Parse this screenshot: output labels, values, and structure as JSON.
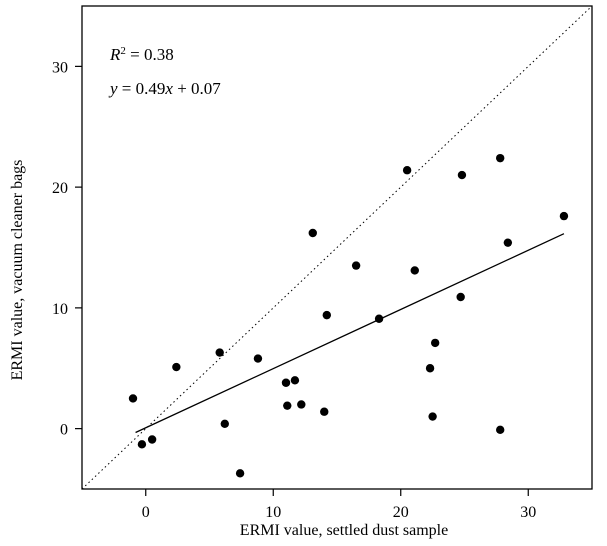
{
  "chart_data": {
    "type": "scatter",
    "xlabel": "ERMI value, settled dust sample",
    "ylabel": "ERMI value, vacuum cleaner bags",
    "xlim": [
      -5,
      35
    ],
    "ylim": [
      -5,
      35
    ],
    "xticks": [
      0,
      10,
      20,
      30
    ],
    "yticks": [
      0,
      10,
      20,
      30
    ],
    "grid": false,
    "annotations": {
      "r2_symbol": "R",
      "r2_exponent": "2",
      "r2_value": " = 0.38",
      "equation_y": "y",
      "equation_mid": " = 0.49",
      "equation_x": "x",
      "equation_tail": " + 0.07"
    },
    "points": [
      {
        "x": -1.0,
        "y": 2.5
      },
      {
        "x": -0.3,
        "y": -1.3
      },
      {
        "x": 0.5,
        "y": -0.9
      },
      {
        "x": 2.4,
        "y": 5.1
      },
      {
        "x": 5.8,
        "y": 6.3
      },
      {
        "x": 6.2,
        "y": 0.4
      },
      {
        "x": 7.4,
        "y": -3.7
      },
      {
        "x": 8.8,
        "y": 5.8
      },
      {
        "x": 11.0,
        "y": 3.8
      },
      {
        "x": 11.1,
        "y": 1.9
      },
      {
        "x": 11.7,
        "y": 4.0
      },
      {
        "x": 12.2,
        "y": 2.0
      },
      {
        "x": 13.1,
        "y": 16.2
      },
      {
        "x": 14.0,
        "y": 1.4
      },
      {
        "x": 14.2,
        "y": 9.4
      },
      {
        "x": 16.5,
        "y": 13.5
      },
      {
        "x": 18.3,
        "y": 9.1
      },
      {
        "x": 20.5,
        "y": 21.4
      },
      {
        "x": 21.1,
        "y": 13.1
      },
      {
        "x": 22.3,
        "y": 5.0
      },
      {
        "x": 22.5,
        "y": 1.0
      },
      {
        "x": 22.7,
        "y": 7.1
      },
      {
        "x": 24.7,
        "y": 10.9
      },
      {
        "x": 24.8,
        "y": 21.0
      },
      {
        "x": 27.8,
        "y": 22.4
      },
      {
        "x": 27.8,
        "y": -0.1
      },
      {
        "x": 28.4,
        "y": 15.4
      },
      {
        "x": 32.8,
        "y": 17.6
      }
    ],
    "regression": {
      "slope": 0.49,
      "intercept": 0.07,
      "x_range": [
        -0.8,
        32.8
      ]
    },
    "identity_line": {
      "style": "dotted"
    }
  }
}
